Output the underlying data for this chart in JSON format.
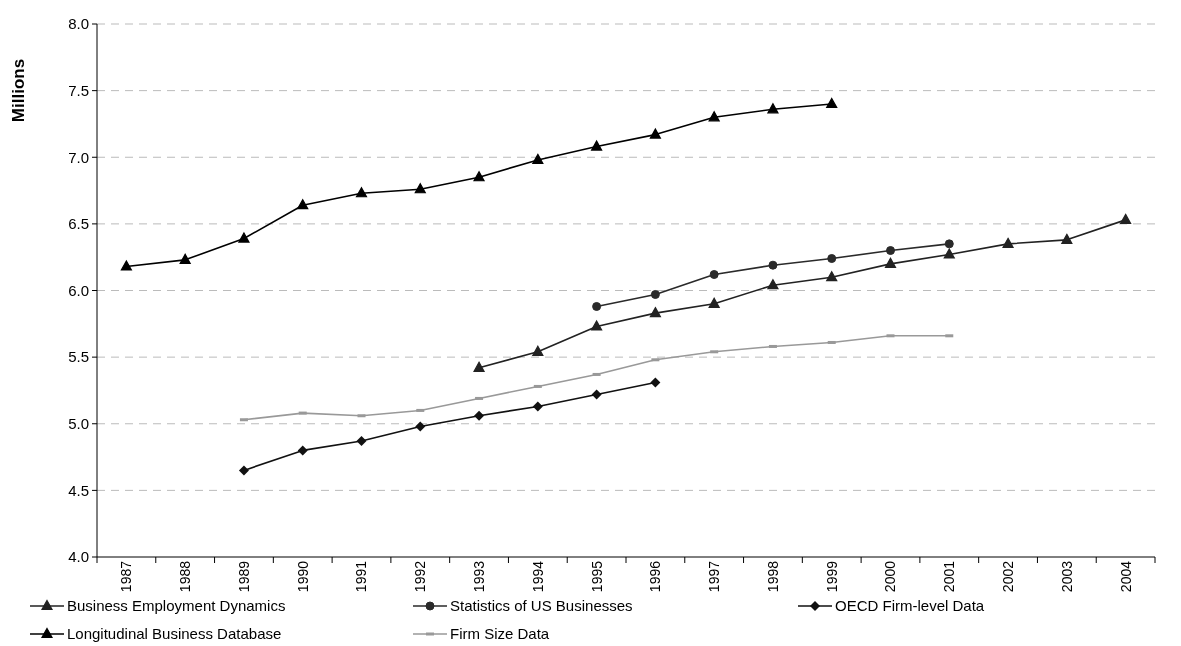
{
  "chart_data": {
    "type": "line",
    "ylabel": "Millions",
    "categories": [
      "1987",
      "1988",
      "1989",
      "1990",
      "1991",
      "1992",
      "1993",
      "1994",
      "1995",
      "1996",
      "1997",
      "1998",
      "1999",
      "2000",
      "2001",
      "2002",
      "2003",
      "2004"
    ],
    "ylim": [
      4.0,
      8.0
    ],
    "yticks": [
      {
        "value": 4,
        "label": "4.0"
      },
      4.5,
      {
        "value": 5,
        "label": "5.0"
      },
      5.5,
      {
        "value": 6,
        "label": "6.0"
      },
      6.5,
      {
        "value": 7,
        "label": "7.0"
      },
      7.5,
      {
        "value": 8,
        "label": "8.0"
      }
    ],
    "grid": "y",
    "legend": "bottom",
    "series": [
      {
        "name": "Business Employment Dynamics",
        "color": "#222222",
        "marker": "triangle",
        "values": [
          null,
          null,
          null,
          null,
          null,
          null,
          5.42,
          5.54,
          5.73,
          5.83,
          5.9,
          6.04,
          6.1,
          6.2,
          6.27,
          6.35,
          6.38,
          6.53
        ]
      },
      {
        "name": "Statistics of US Businesses",
        "color": "#2a2a2a",
        "marker": "circle",
        "values": [
          null,
          null,
          null,
          null,
          null,
          null,
          null,
          null,
          5.88,
          5.97,
          6.12,
          6.19,
          6.24,
          6.3,
          6.35,
          null,
          null,
          null
        ]
      },
      {
        "name": "OECD Firm-level Data",
        "color": "#111111",
        "marker": "diamond",
        "values": [
          null,
          null,
          4.65,
          4.8,
          4.87,
          4.98,
          5.06,
          5.13,
          5.22,
          5.31,
          null,
          null,
          null,
          null,
          null,
          null,
          null,
          null
        ]
      },
      {
        "name": "Longitudinal Business Database",
        "color": "#000000",
        "marker": "triangle",
        "values": [
          6.18,
          6.23,
          6.39,
          6.64,
          6.73,
          6.76,
          6.85,
          6.98,
          7.08,
          7.17,
          7.3,
          7.36,
          7.4,
          null,
          null,
          null,
          null,
          null
        ]
      },
      {
        "name": "Firm Size Data",
        "color": "#999999",
        "marker": "square",
        "values": [
          null,
          null,
          5.03,
          5.08,
          5.06,
          5.1,
          5.19,
          5.28,
          5.37,
          5.48,
          5.54,
          5.58,
          5.61,
          5.66,
          5.66,
          null,
          null,
          null
        ]
      }
    ]
  }
}
